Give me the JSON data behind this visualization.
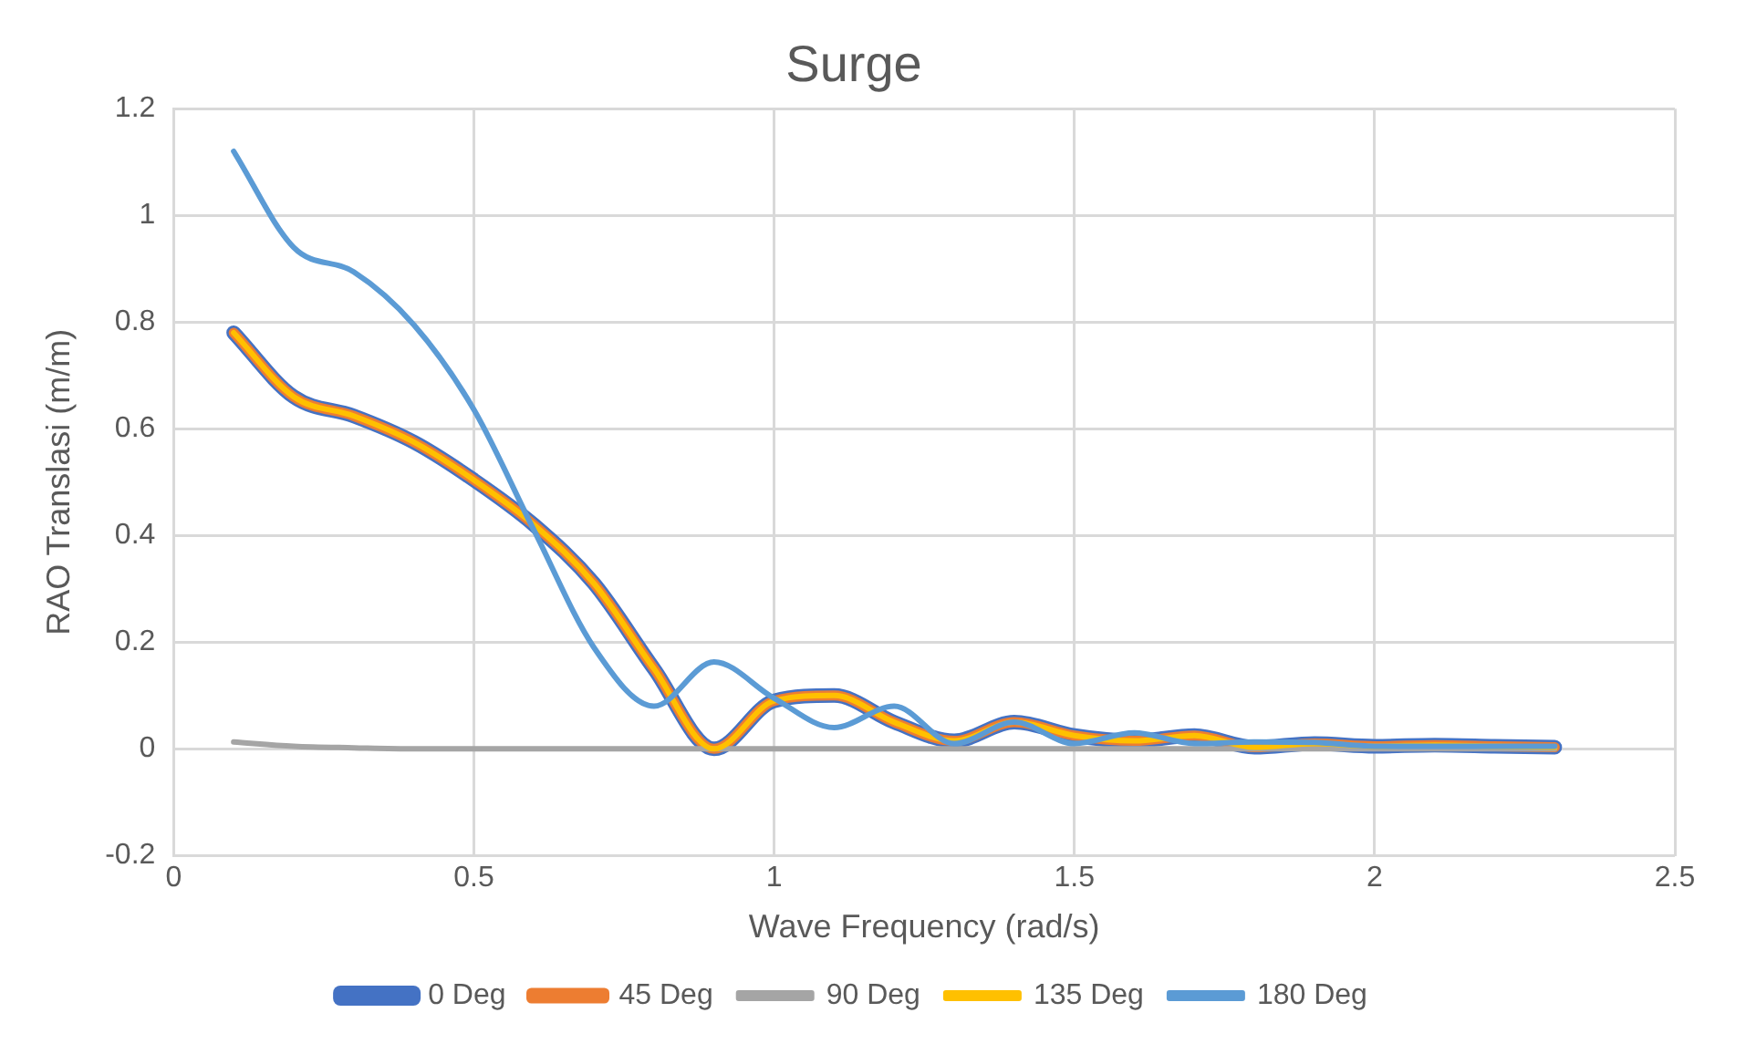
{
  "chart_data": {
    "type": "line",
    "title": "Surge",
    "xlabel": "Wave Frequency (rad/s)",
    "ylabel": "RAO Translasi (m/m)",
    "x": [
      0.1,
      0.2,
      0.3,
      0.4,
      0.5,
      0.6,
      0.7,
      0.8,
      0.9,
      1.0,
      1.1,
      1.2,
      1.3,
      1.4,
      1.5,
      1.6,
      1.7,
      1.8,
      1.9,
      2.0,
      2.1,
      2.2,
      2.3
    ],
    "series": [
      {
        "name": "0 Deg",
        "color": "#4472c4",
        "values": [
          0.78,
          0.66,
          0.624,
          0.575,
          0.504,
          0.42,
          0.31,
          0.15,
          0.0,
          0.09,
          0.1,
          0.05,
          0.015,
          0.05,
          0.025,
          0.015,
          0.025,
          0.003,
          0.01,
          0.005,
          0.007,
          0.005,
          0.003
        ]
      },
      {
        "name": "45 Deg",
        "color": "#ed7d31",
        "values": [
          0.78,
          0.66,
          0.624,
          0.575,
          0.504,
          0.42,
          0.31,
          0.15,
          0.0,
          0.09,
          0.1,
          0.05,
          0.015,
          0.05,
          0.025,
          0.015,
          0.025,
          0.003,
          0.01,
          0.005,
          0.007,
          0.005,
          0.003
        ]
      },
      {
        "name": "90 Deg",
        "color": "#a5a5a5",
        "values": [
          0.013,
          0.005,
          0.002,
          0,
          0,
          0,
          0,
          0,
          0,
          0,
          0,
          0,
          0,
          0,
          0,
          0,
          0,
          0,
          0,
          0,
          0,
          0,
          0
        ]
      },
      {
        "name": "135 Deg",
        "color": "#ffc000",
        "values": [
          0.78,
          0.66,
          0.624,
          0.575,
          0.504,
          0.42,
          0.31,
          0.15,
          0.0,
          0.09,
          0.1,
          0.05,
          0.015,
          0.05,
          0.025,
          0.015,
          0.025,
          0.003,
          0.01,
          0.005,
          0.007,
          0.005,
          0.003
        ]
      },
      {
        "name": "180 Deg",
        "color": "#5b9bd5",
        "values": [
          1.12,
          0.94,
          0.894,
          0.795,
          0.636,
          0.41,
          0.19,
          0.08,
          0.163,
          0.095,
          0.04,
          0.08,
          0.01,
          0.05,
          0.01,
          0.03,
          0.01,
          0.013,
          0.012,
          0.005,
          0.005,
          0.005,
          0.005
        ]
      }
    ],
    "xlim": [
      0,
      2.5
    ],
    "xticks": [
      0,
      0.5,
      1,
      1.5,
      2,
      2.5
    ],
    "ylim": [
      -0.2,
      1.2
    ],
    "yticks": [
      -0.2,
      0,
      0.2,
      0.4,
      0.6,
      0.8,
      1,
      1.2
    ],
    "grid": true,
    "legend": "bottom",
    "marker": "none",
    "line_style": "solid"
  }
}
